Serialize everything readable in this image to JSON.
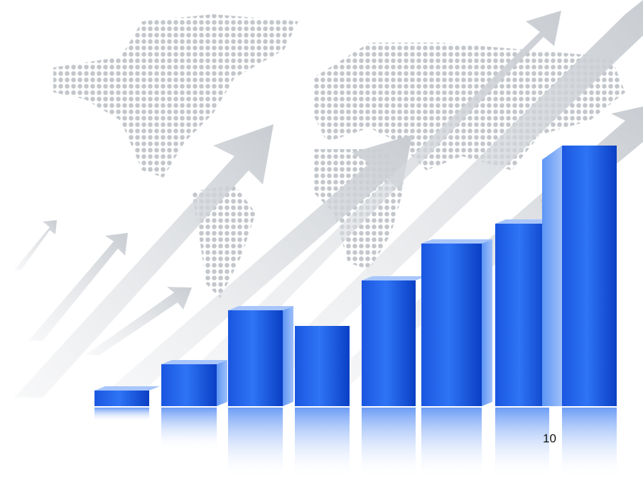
{
  "page_number": "10"
}
